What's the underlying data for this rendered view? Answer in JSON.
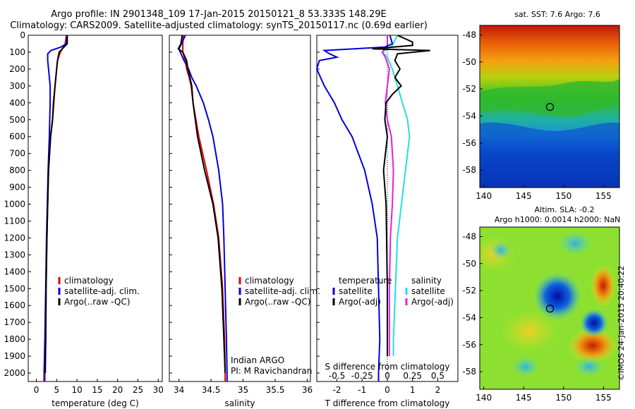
{
  "title": {
    "line1": "Argo profile: IN 2901348_109 17-Jan-2015 20150121_8 53.333S 148.29E",
    "line2": "Climatology: CARS2009. Satellite-adjusted climatology: synTS_20150117.nc (0.69d earlier)"
  },
  "depth_ticks": [
    "0",
    "100",
    "200",
    "300",
    "400",
    "500",
    "600",
    "700",
    "800",
    "900",
    "1000",
    "1100",
    "1200",
    "1300",
    "1400",
    "1500",
    "1600",
    "1700",
    "1800",
    "1900",
    "2000"
  ],
  "colors": {
    "climatology": "#e00000",
    "satellite": "#0000d8",
    "argo": "#000000",
    "sat_diff": "#20e0e0",
    "argo_diff": "#e020e0"
  },
  "panels": {
    "temperature": {
      "xlabel": "temperature (deg C)",
      "ticks": [
        "0",
        "5",
        "10",
        "15",
        "20",
        "25",
        "30"
      ],
      "legend": [
        "climatology",
        "satellite-adj. clim.",
        "Argo(..raw -QC)"
      ]
    },
    "salinity": {
      "xlabel": "salinity",
      "ticks": [
        "34",
        "34.5",
        "35",
        "35.5",
        "36"
      ],
      "legend": [
        "climatology",
        "satellite-adj. clim.",
        "Argo(..raw -QC)"
      ],
      "note1": "Indian ARGO",
      "note2": "PI: M Ravichandran"
    },
    "difference": {
      "xlabel_bottom": "T difference from climatology",
      "xlabel_top": "S difference from climatology",
      "ticks_T": [
        "-2",
        "-1",
        "0",
        "1",
        "2"
      ],
      "ticks_S": [
        "-0.5",
        "-0.25",
        "0",
        "0.25",
        "0.5"
      ],
      "legend_T_head": "temperature",
      "legend_S_head": "salinity",
      "legend_T": [
        "satellite",
        "Argo(-adj)"
      ],
      "legend_S": [
        "satellite",
        "Argo(-adj)"
      ]
    }
  },
  "maps": {
    "sst_title": "sat. SST: 7.6 Argo: 7.6",
    "sla_title1": "Altim. SLA: -0.2",
    "sla_title2": "Argo h1000: 0.0014 h2000: NaN",
    "lat_ticks": [
      "-48",
      "-50",
      "-52",
      "-54",
      "-56",
      "-58"
    ],
    "lon_ticks": [
      "140",
      "145",
      "150",
      "155"
    ]
  },
  "stamp": "©IMOS 24-Jan-2015 20:40:22",
  "chart_data": [
    {
      "type": "line",
      "xlabel": "temperature (deg C)",
      "ylabel": "",
      "xlim": [
        -2,
        31
      ],
      "ylim": [
        2050,
        0
      ],
      "series": [
        {
          "name": "climatology",
          "depth": [
            0,
            50,
            100,
            150,
            200,
            300,
            400,
            500,
            600,
            800,
            1000,
            1200,
            1500,
            1800,
            2000,
            2050
          ],
          "values": [
            7.4,
            7.1,
            5.9,
            5.2,
            5.0,
            4.6,
            4.3,
            4.0,
            3.5,
            3.0,
            2.8,
            2.6,
            2.4,
            2.3,
            2.1,
            2.1
          ]
        },
        {
          "name": "satellite-adj. clim.",
          "depth": [
            0,
            50,
            70,
            90,
            110,
            150,
            200,
            300,
            400,
            500,
            600,
            800,
            1000,
            1200,
            1500,
            1800,
            2000,
            2050
          ],
          "values": [
            7.5,
            7.4,
            6.0,
            3.6,
            2.8,
            2.8,
            3.0,
            3.4,
            3.4,
            3.3,
            3.2,
            2.9,
            2.7,
            2.5,
            2.3,
            2.1,
            1.9,
            1.9
          ]
        },
        {
          "name": "Argo(..raw -QC)",
          "depth": [
            0,
            50,
            80,
            100,
            150,
            200,
            300,
            400,
            500,
            600,
            800,
            1000,
            1200,
            1500,
            1800,
            2000
          ],
          "values": [
            7.6,
            7.6,
            6.4,
            5.6,
            5.2,
            5.0,
            4.6,
            4.2,
            4.0,
            3.5,
            3.0,
            2.8,
            2.6,
            2.4,
            2.3,
            2.2
          ]
        }
      ]
    },
    {
      "type": "line",
      "xlabel": "salinity",
      "ylabel": "",
      "xlim": [
        33.85,
        36.05
      ],
      "ylim": [
        2050,
        0
      ],
      "series": [
        {
          "name": "climatology",
          "depth": [
            0,
            50,
            100,
            150,
            200,
            250,
            300,
            400,
            600,
            800,
            1000,
            1200,
            1500,
            1800,
            2000,
            2050
          ],
          "values": [
            34.07,
            34.06,
            34.06,
            34.1,
            34.12,
            34.16,
            34.19,
            34.22,
            34.31,
            34.43,
            34.54,
            34.62,
            34.68,
            34.71,
            34.72,
            34.72
          ]
        },
        {
          "name": "satellite-adj. clim.",
          "depth": [
            0,
            50,
            80,
            100,
            150,
            200,
            250,
            300,
            400,
            500,
            600,
            800,
            1000,
            1200,
            1500,
            1800,
            2000,
            2050
          ],
          "values": [
            34.1,
            34.04,
            34.0,
            34.02,
            34.08,
            34.15,
            34.2,
            34.27,
            34.38,
            34.46,
            34.53,
            34.62,
            34.68,
            34.7,
            34.72,
            34.74,
            34.75,
            34.75
          ]
        },
        {
          "name": "Argo(..raw -QC)",
          "depth": [
            0,
            50,
            80,
            100,
            150,
            200,
            300,
            400,
            600,
            800,
            1000,
            1200,
            1500,
            1800,
            2000
          ],
          "values": [
            34.05,
            34.03,
            33.99,
            34.06,
            34.12,
            34.14,
            34.2,
            34.22,
            34.29,
            34.4,
            34.53,
            34.61,
            34.67,
            34.7,
            34.72
          ]
        }
      ]
    },
    {
      "type": "line",
      "xlabel": "T difference from climatology",
      "ylabel": "",
      "xlim": [
        -2.8,
        2.8
      ],
      "ylim": [
        2050,
        0
      ],
      "series": [
        {
          "name": "temperature satellite",
          "depth": [
            0,
            50,
            70,
            90,
            110,
            130,
            150,
            200,
            300,
            400,
            500,
            600,
            800,
            1000,
            1200,
            1500,
            1800,
            2000,
            2050
          ],
          "values": [
            0.1,
            0.2,
            -0.1,
            -2.5,
            -2.3,
            -2.0,
            -2.7,
            -2.8,
            -2.5,
            -2.1,
            -1.8,
            -1.4,
            -0.9,
            -0.6,
            -0.4,
            -0.35,
            -0.3,
            -0.35,
            -0.35
          ]
        },
        {
          "name": "temperature Argo(-adj)",
          "depth": [
            0,
            40,
            60,
            80,
            90,
            110,
            150,
            200,
            250,
            300,
            350,
            400,
            500,
            600,
            800,
            1000,
            1500,
            1800,
            1900
          ],
          "values": [
            0.4,
            1.0,
            1.0,
            -0.6,
            1.7,
            0.4,
            0.3,
            0.5,
            0.3,
            0.55,
            0.2,
            -0.05,
            -0.1,
            0.0,
            -0.15,
            -0.05,
            0.0,
            0.0,
            0.0
          ]
        }
      ]
    },
    {
      "type": "line",
      "xlabel": "S difference from climatology",
      "ylabel": "",
      "xlim": [
        -0.7,
        0.7
      ],
      "ylim": [
        2050,
        0
      ],
      "series": [
        {
          "name": "salinity satellite",
          "depth": [
            0,
            60,
            100,
            130,
            200,
            300,
            400,
            500,
            600,
            800,
            1000,
            1200,
            1500,
            1800,
            1900
          ],
          "values": [
            0.1,
            0.05,
            -0.05,
            0.0,
            0.05,
            0.1,
            0.15,
            0.2,
            0.22,
            0.18,
            0.14,
            0.1,
            0.08,
            0.06,
            0.06
          ]
        },
        {
          "name": "salinity Argo(-adj)",
          "depth": [
            0,
            60,
            100,
            130,
            200,
            300,
            400,
            500,
            600,
            800,
            1000,
            1200,
            1500,
            1800,
            1900
          ],
          "values": [
            0.0,
            0.0,
            -0.05,
            -0.02,
            0.02,
            0.0,
            -0.02,
            0.0,
            0.04,
            0.06,
            0.05,
            0.03,
            0.02,
            0.02,
            0.02
          ]
        }
      ]
    },
    {
      "type": "heatmap",
      "title": "sat. SST: 7.6 Argo: 7.6",
      "xlim": [
        139.5,
        157
      ],
      "ylim": [
        -59.3,
        -47.3
      ],
      "x_ticks": [
        140,
        145,
        150,
        155
      ],
      "y_ticks": [
        -48,
        -50,
        -52,
        -54,
        -56,
        -58
      ],
      "marker": {
        "lon": 148.29,
        "lat": -53.333
      }
    },
    {
      "type": "heatmap",
      "title": "Altim. SLA: -0.2",
      "xlim": [
        139.5,
        157
      ],
      "ylim": [
        -59.3,
        -47.3
      ],
      "x_ticks": [
        140,
        145,
        150,
        155
      ],
      "y_ticks": [
        -48,
        -50,
        -52,
        -54,
        -56,
        -58
      ],
      "marker": {
        "lon": 148.29,
        "lat": -53.333
      }
    }
  ]
}
